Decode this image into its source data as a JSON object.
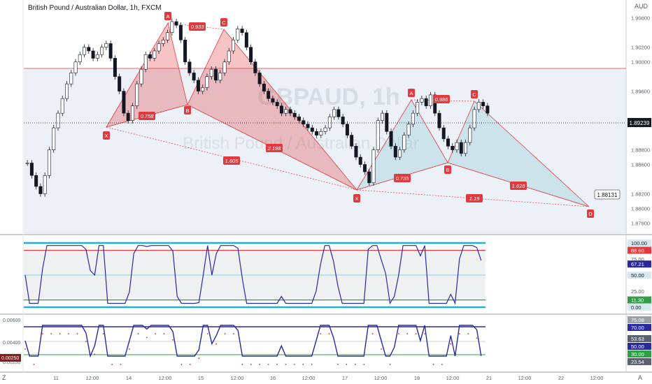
{
  "header": {
    "title": "British Pound / Australian Dollar, 1h, FXCM",
    "currency": "AUD"
  },
  "watermark": {
    "ticker": "GBPAUD, 1h",
    "name": "British Pound / Australian Dollar"
  },
  "corners": {
    "bottom_left": "Z",
    "bottom_right": "A"
  },
  "colors": {
    "up_candle": "#131722",
    "down_candle": "#131722",
    "harmonic_red": "#e03a3e",
    "harmonic_red_fill": "rgba(224,58,62,0.30)",
    "harmonic_blue_fill": "rgba(150,200,215,0.35)",
    "stoch_line": "#2a2aa0",
    "band_cyan": "#20b0d8",
    "band_red": "#e03a3e",
    "band_green": "#2f9e44",
    "bg_band": "rgba(210,225,235,0.45)"
  },
  "chart_data": [
    {
      "type": "candlestick",
      "name": "price",
      "y_ticks": [
        "1.90600",
        "1.90200",
        "1.90000",
        "1.89600",
        "1.89200",
        "1.88800",
        "1.88600",
        "1.88200",
        "1.88000",
        "1.87800"
      ],
      "ylim": [
        1.877,
        1.9075
      ],
      "x_ticks": [
        "11",
        "12:00",
        "14",
        "12:00",
        "15",
        "12:00",
        "16",
        "12:00",
        "17",
        "12:00",
        "18",
        "12:00",
        "21",
        "12:00",
        "22",
        "12:00",
        "A"
      ],
      "last_price": "1.89239",
      "horizontal_line": 1.8994,
      "target_label": "1.88131",
      "closes": [
        1.8862,
        1.8845,
        1.883,
        1.882,
        1.8845,
        1.888,
        1.891,
        1.893,
        1.895,
        1.897,
        1.8985,
        1.9,
        1.901,
        1.902,
        1.9015,
        1.9005,
        1.901,
        1.902,
        1.9025,
        1.9005,
        1.898,
        1.896,
        1.893,
        1.892,
        1.894,
        1.897,
        1.899,
        1.901,
        1.9005,
        1.9015,
        1.9025,
        1.903,
        1.904,
        1.9055,
        1.905,
        1.903,
        1.9,
        1.8985,
        1.8975,
        1.896,
        1.8965,
        1.898,
        1.899,
        1.8975,
        1.8985,
        1.9,
        1.9015,
        1.903,
        1.9045,
        1.904,
        1.902,
        1.9,
        1.8985,
        1.897,
        1.896,
        1.895,
        1.8945,
        1.894,
        1.893,
        1.8935,
        1.893,
        1.8925,
        1.892,
        1.8915,
        1.891,
        1.8905,
        1.89,
        1.8905,
        1.891,
        1.8925,
        1.8935,
        1.8925,
        1.8915,
        1.89,
        1.8885,
        1.887,
        1.886,
        1.885,
        1.8835,
        1.888,
        1.892,
        1.893,
        1.8905,
        1.8885,
        1.887,
        1.888,
        1.89,
        1.8915,
        1.893,
        1.8945,
        1.895,
        1.894,
        1.8955,
        1.893,
        1.891,
        1.8895,
        1.8885,
        1.888,
        1.889,
        1.8875,
        1.889,
        1.891,
        1.8935,
        1.8945,
        1.894,
        1.893
      ],
      "pattern_labels": [
        {
          "text": "X",
          "points": [
            "1.8915"
          ]
        },
        {
          "text": "A"
        },
        {
          "text": "B"
        },
        {
          "text": "C"
        },
        {
          "text": "X"
        },
        {
          "text": "A"
        },
        {
          "text": "B"
        },
        {
          "text": "C"
        },
        {
          "text": "D"
        }
      ],
      "ratios": [
        "0.933",
        "0.758",
        "2.198",
        "1.605",
        "0.986",
        "0.735",
        "1.628",
        "1.19"
      ]
    },
    {
      "type": "line",
      "name": "oscillator-1",
      "y_ticks": [
        "100.00",
        "88.60",
        "75.00",
        "67.21",
        "50.00",
        "25.00",
        "11.30",
        "0.00"
      ],
      "levels": {
        "upper": 100,
        "overbought": 88.6,
        "mid": 50,
        "oversold": 11.3,
        "lower": 0
      },
      "last_value": "67.21"
    },
    {
      "type": "line",
      "name": "oscillator-2",
      "y_ticks": [
        "0.00600",
        "0.00400",
        "0.00250"
      ],
      "right_labels": [
        "75.08",
        "70.00",
        "53.63",
        "50.00",
        "30.00",
        "23.54"
      ],
      "left_label": "0.00250"
    }
  ]
}
